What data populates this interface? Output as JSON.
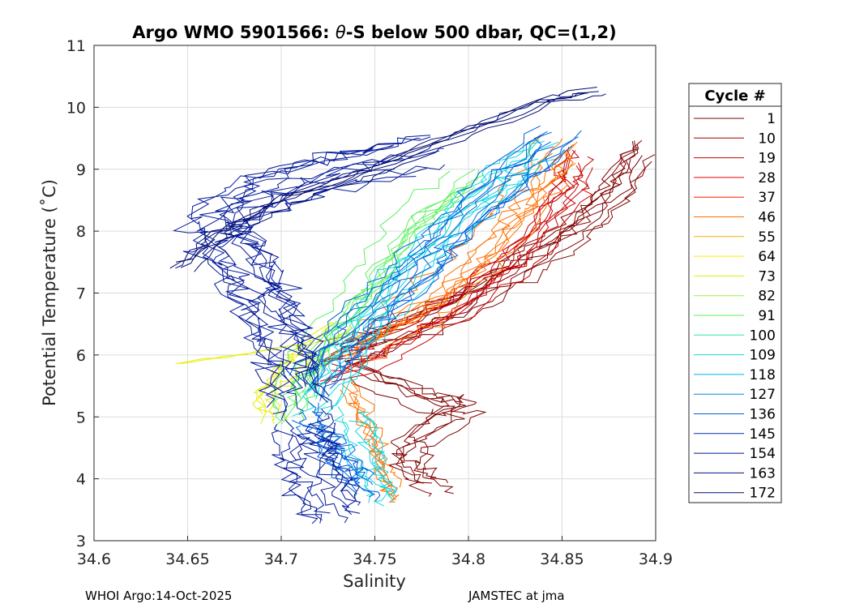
{
  "chart_data": {
    "type": "line",
    "title_parts": [
      "Argo WMO 5901566: ",
      "θ",
      "-S below 500 dbar,  QC=(1,2)"
    ],
    "xlabel": "Salinity",
    "ylabel": "Potential Temperature (˚C)",
    "xlim": [
      34.6,
      34.9
    ],
    "ylim": [
      3,
      11
    ],
    "xticks": [
      34.6,
      34.65,
      34.7,
      34.75,
      34.8,
      34.85,
      34.9
    ],
    "xtick_labels": [
      "34.6",
      "34.65",
      "34.7",
      "34.75",
      "34.8",
      "34.85",
      "34.9"
    ],
    "yticks": [
      3,
      4,
      5,
      6,
      7,
      8,
      9,
      10,
      11
    ],
    "ytick_labels": [
      "3",
      "4",
      "5",
      "6",
      "7",
      "8",
      "9",
      "10",
      "11"
    ],
    "grid": true,
    "legend": {
      "title": "Cycle #",
      "placement": "outside-right",
      "entries": [
        {
          "label": "1",
          "color": "#7f0000"
        },
        {
          "label": "10",
          "color": "#a30000"
        },
        {
          "label": "19",
          "color": "#c80000"
        },
        {
          "label": "28",
          "color": "#ed0000"
        },
        {
          "label": "37",
          "color": "#ff2000"
        },
        {
          "label": "46",
          "color": "#ff7000"
        },
        {
          "label": "55",
          "color": "#ffb000"
        },
        {
          "label": "64",
          "color": "#ffe600"
        },
        {
          "label": "73",
          "color": "#d4f000"
        },
        {
          "label": "82",
          "color": "#9cf23a"
        },
        {
          "label": "91",
          "color": "#5cf05e"
        },
        {
          "label": "100",
          "color": "#2ee8a0"
        },
        {
          "label": "109",
          "color": "#10d8e0"
        },
        {
          "label": "118",
          "color": "#00b4f0"
        },
        {
          "label": "127",
          "color": "#0088e8"
        },
        {
          "label": "136",
          "color": "#0060d8"
        },
        {
          "label": "145",
          "color": "#0030b8"
        },
        {
          "label": "154",
          "color": "#001898"
        },
        {
          "label": "163",
          "color": "#000e84"
        },
        {
          "label": "172",
          "color": "#000a70"
        }
      ]
    },
    "series_envelopes": [
      {
        "group": "1",
        "color": "#7f0000",
        "path": [
          [
            34.735,
            6.0
          ],
          [
            34.76,
            6.3
          ],
          [
            34.8,
            6.8
          ],
          [
            34.83,
            7.4
          ],
          [
            34.86,
            8.0
          ],
          [
            34.88,
            8.6
          ],
          [
            34.895,
            9.3
          ]
        ],
        "spread": [
          0.01,
          0.25
        ],
        "count": 9
      },
      {
        "group": "1",
        "color": "#7f0000",
        "path": [
          [
            34.74,
            5.8
          ],
          [
            34.78,
            5.3
          ],
          [
            34.8,
            5.2
          ],
          [
            34.77,
            4.6
          ],
          [
            34.77,
            4.2
          ],
          [
            34.785,
            3.9
          ]
        ],
        "spread": [
          0.01,
          0.2
        ],
        "count": 6
      },
      {
        "group": "19",
        "color": "#c80000",
        "path": [
          [
            34.725,
            5.7
          ],
          [
            34.76,
            6.2
          ],
          [
            34.8,
            6.9
          ],
          [
            34.83,
            7.6
          ],
          [
            34.855,
            8.6
          ],
          [
            34.86,
            9.2
          ]
        ],
        "spread": [
          0.01,
          0.25
        ],
        "count": 9
      },
      {
        "group": "46",
        "color": "#ff7000",
        "path": [
          [
            34.735,
            6.0
          ],
          [
            34.77,
            6.6
          ],
          [
            34.8,
            7.3
          ],
          [
            34.82,
            8.0
          ],
          [
            34.835,
            8.6
          ],
          [
            34.85,
            9.3
          ]
        ],
        "spread": [
          0.012,
          0.25
        ],
        "count": 8
      },
      {
        "group": "46",
        "color": "#ff7000",
        "path": [
          [
            34.735,
            5.5
          ],
          [
            34.745,
            5.0
          ],
          [
            34.75,
            4.5
          ],
          [
            34.755,
            4.0
          ],
          [
            34.76,
            3.75
          ]
        ],
        "spread": [
          0.008,
          0.2
        ],
        "count": 5
      },
      {
        "group": "73",
        "color": "#e6ee00",
        "path": [
          [
            34.695,
            4.9
          ],
          [
            34.69,
            5.3
          ],
          [
            34.7,
            5.6
          ],
          [
            34.71,
            5.9
          ],
          [
            34.73,
            6.4
          ]
        ],
        "spread": [
          0.008,
          0.2
        ],
        "count": 5
      },
      {
        "group": "73",
        "color": "#e6ee00",
        "path": [
          [
            34.645,
            5.9
          ],
          [
            34.67,
            6.0
          ],
          [
            34.69,
            6.1
          ],
          [
            34.71,
            6.2
          ]
        ],
        "spread": [
          0.004,
          0.05
        ],
        "count": 2
      },
      {
        "group": "91",
        "color": "#5cf05e",
        "path": [
          [
            34.705,
            5.0
          ],
          [
            34.71,
            5.6
          ],
          [
            34.73,
            6.4
          ],
          [
            34.75,
            7.2
          ],
          [
            34.77,
            8.1
          ],
          [
            34.8,
            8.8
          ]
        ],
        "spread": [
          0.01,
          0.25
        ],
        "count": 8
      },
      {
        "group": "109",
        "color": "#10d8e0",
        "path": [
          [
            34.72,
            5.2
          ],
          [
            34.74,
            6.2
          ],
          [
            34.76,
            7.0
          ],
          [
            34.79,
            8.0
          ],
          [
            34.82,
            8.8
          ],
          [
            34.84,
            9.3
          ]
        ],
        "spread": [
          0.012,
          0.3
        ],
        "count": 9
      },
      {
        "group": "109",
        "color": "#10d8e0",
        "path": [
          [
            34.74,
            5.0
          ],
          [
            34.745,
            4.5
          ],
          [
            34.75,
            4.0
          ],
          [
            34.755,
            3.6
          ]
        ],
        "spread": [
          0.01,
          0.2
        ],
        "count": 6
      },
      {
        "group": "136",
        "color": "#0060d8",
        "path": [
          [
            34.72,
            5.4
          ],
          [
            34.74,
            6.3
          ],
          [
            34.77,
            7.1
          ],
          [
            34.79,
            7.8
          ],
          [
            34.82,
            8.6
          ],
          [
            34.85,
            9.4
          ]
        ],
        "spread": [
          0.012,
          0.3
        ],
        "count": 10
      },
      {
        "group": "136",
        "color": "#0060d8",
        "path": [
          [
            34.72,
            5.0
          ],
          [
            34.73,
            4.6
          ],
          [
            34.74,
            4.2
          ],
          [
            34.75,
            3.8
          ]
        ],
        "spread": [
          0.012,
          0.25
        ],
        "count": 8
      },
      {
        "group": "154",
        "color": "#001898",
        "path": [
          [
            34.705,
            5.2
          ],
          [
            34.7,
            6.0
          ],
          [
            34.69,
            6.7
          ],
          [
            34.68,
            7.4
          ],
          [
            34.66,
            7.9
          ],
          [
            34.68,
            8.5
          ],
          [
            34.72,
            8.9
          ],
          [
            34.77,
            9.2
          ]
        ],
        "spread": [
          0.018,
          0.35
        ],
        "count": 12
      },
      {
        "group": "154",
        "color": "#001898",
        "path": [
          [
            34.71,
            5.0
          ],
          [
            34.715,
            4.5
          ],
          [
            34.72,
            4.0
          ],
          [
            34.73,
            3.5
          ]
        ],
        "spread": [
          0.015,
          0.25
        ],
        "count": 9
      },
      {
        "group": "172",
        "color": "#000a70",
        "path": [
          [
            34.645,
            7.4
          ],
          [
            34.67,
            8.0
          ],
          [
            34.7,
            8.5
          ],
          [
            34.74,
            8.9
          ],
          [
            34.79,
            9.5
          ],
          [
            34.84,
            10.1
          ],
          [
            34.867,
            10.25
          ]
        ],
        "spread": [
          0.008,
          0.12
        ],
        "count": 5
      }
    ]
  },
  "footer": {
    "left": "WHOI Argo:14-Oct-2025",
    "right": "JAMSTEC at jma"
  }
}
